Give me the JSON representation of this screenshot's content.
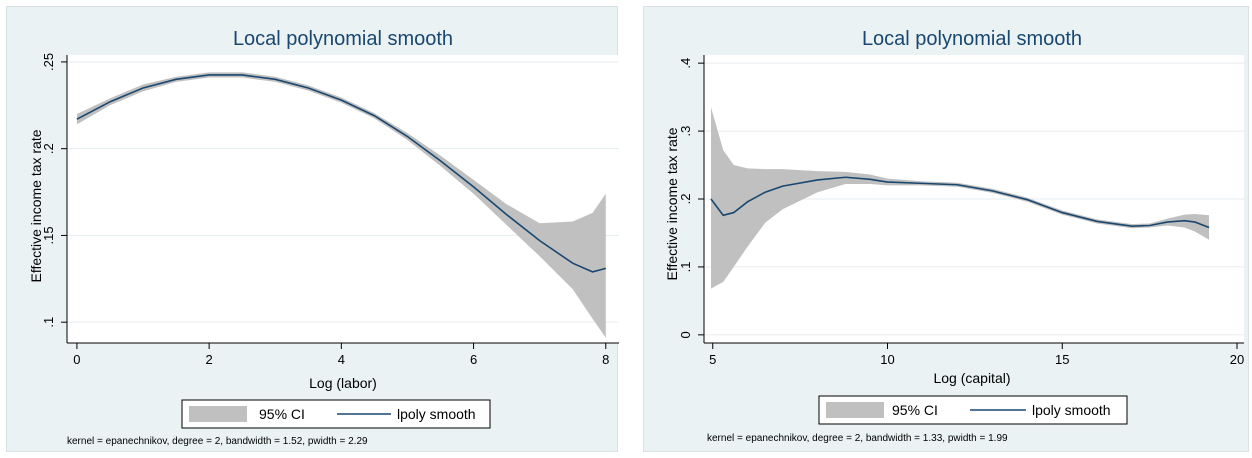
{
  "colors": {
    "panel_bg": "#eaf2f3",
    "plot_bg": "#ffffff",
    "ci_fill": "#c0c0c0",
    "line": "#1a476f",
    "grid": "#e6eef0",
    "title": "#1a476f"
  },
  "chart_data": [
    {
      "type": "line",
      "title": "Local polynomial smooth",
      "xlabel": "Log (labor)",
      "ylabel": "Effective income tax rate",
      "xlim": [
        0,
        8
      ],
      "ylim": [
        0.1,
        0.25
      ],
      "xticks": [
        0,
        2,
        4,
        6,
        8
      ],
      "xtick_labels": [
        "0",
        "2",
        "4",
        "6",
        "8"
      ],
      "yticks": [
        0.1,
        0.15,
        0.2,
        0.25
      ],
      "ytick_labels": [
        ".1",
        ".15",
        ".2",
        ".25"
      ],
      "grid": true,
      "legend_position": "bottom",
      "legend": [
        "95% CI",
        "lpoly smooth"
      ],
      "note": "kernel = epanechnikov, degree = 2, bandwidth = 1.52, pwidth = 2.29",
      "series": [
        {
          "name": "lpoly smooth",
          "x": [
            0,
            0.5,
            1,
            1.5,
            2,
            2.5,
            3,
            3.5,
            4,
            4.5,
            5,
            5.5,
            6,
            6.5,
            7,
            7.5,
            7.8,
            8
          ],
          "y": [
            0.217,
            0.227,
            0.235,
            0.24,
            0.2425,
            0.2425,
            0.24,
            0.235,
            0.228,
            0.219,
            0.207,
            0.193,
            0.178,
            0.162,
            0.147,
            0.134,
            0.129,
            0.131
          ],
          "ci_lower": [
            0.214,
            0.225,
            0.233,
            0.2385,
            0.241,
            0.241,
            0.2385,
            0.2335,
            0.2265,
            0.2175,
            0.205,
            0.19,
            0.174,
            0.156,
            0.138,
            0.119,
            0.102,
            0.091
          ],
          "ci_upper": [
            0.22,
            0.229,
            0.237,
            0.2415,
            0.244,
            0.244,
            0.2415,
            0.2365,
            0.2295,
            0.2205,
            0.209,
            0.196,
            0.182,
            0.168,
            0.157,
            0.158,
            0.163,
            0.174
          ]
        }
      ]
    },
    {
      "type": "line",
      "title": "Local polynomial smooth",
      "xlabel": "Log (capital)",
      "ylabel": "Effective income tax rate",
      "xlim": [
        5,
        20
      ],
      "ylim": [
        0,
        0.4
      ],
      "xticks": [
        5,
        10,
        15,
        20
      ],
      "xtick_labels": [
        "5",
        "10",
        "15",
        "20"
      ],
      "yticks": [
        0,
        0.1,
        0.2,
        0.3,
        0.4
      ],
      "ytick_labels": [
        "0",
        ".1",
        ".2",
        ".3",
        ".4"
      ],
      "grid": true,
      "legend_position": "bottom",
      "legend": [
        "95% CI",
        "lpoly smooth"
      ],
      "note": "kernel = epanechnikov, degree = 2, bandwidth = 1.33, pwidth = 1.99",
      "series": [
        {
          "name": "lpoly smooth",
          "x": [
            4.95,
            5.3,
            5.6,
            6,
            6.5,
            7,
            8,
            8.8,
            9.5,
            10,
            11,
            12,
            13,
            14,
            15,
            16,
            17,
            17.5,
            18,
            18.5,
            18.8,
            19.2
          ],
          "y": [
            0.2,
            0.176,
            0.18,
            0.196,
            0.21,
            0.219,
            0.228,
            0.232,
            0.229,
            0.225,
            0.223,
            0.221,
            0.212,
            0.199,
            0.18,
            0.167,
            0.16,
            0.161,
            0.166,
            0.168,
            0.166,
            0.158
          ],
          "ci_lower": [
            0.068,
            0.078,
            0.1,
            0.13,
            0.165,
            0.185,
            0.21,
            0.222,
            0.222,
            0.22,
            0.22,
            0.218,
            0.209,
            0.196,
            0.177,
            0.164,
            0.157,
            0.158,
            0.161,
            0.158,
            0.152,
            0.14
          ],
          "ci_upper": [
            0.335,
            0.272,
            0.25,
            0.245,
            0.244,
            0.244,
            0.241,
            0.24,
            0.236,
            0.23,
            0.226,
            0.224,
            0.215,
            0.202,
            0.183,
            0.17,
            0.163,
            0.164,
            0.171,
            0.177,
            0.178,
            0.176
          ]
        }
      ]
    }
  ]
}
